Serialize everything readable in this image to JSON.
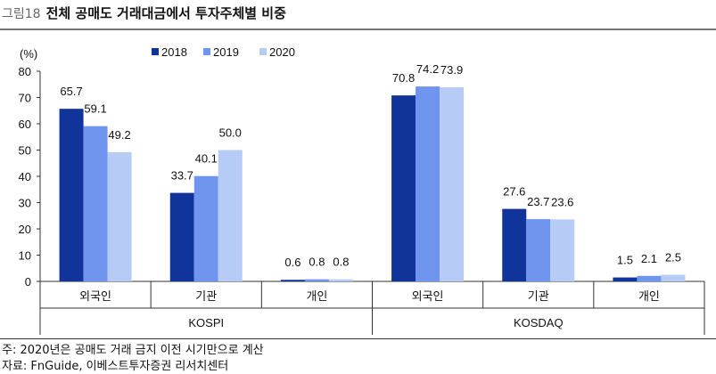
{
  "header": {
    "figure_label": "그림18",
    "title": "전체 공매도 거래대금에서 투자주체별 비중"
  },
  "chart_data": {
    "type": "bar",
    "title": "전체 공매도 거래대금에서 투자주체별 비중",
    "unit_label": "(%)",
    "ylim": [
      0,
      80
    ],
    "yticks": [
      0,
      10,
      20,
      30,
      40,
      50,
      60,
      70,
      80
    ],
    "legend_position": "top-center",
    "grid": false,
    "groups": [
      {
        "name": "KOSPI",
        "categories": [
          "외국인",
          "기관",
          "개인"
        ]
      },
      {
        "name": "KOSDAQ",
        "categories": [
          "외국인",
          "기관",
          "개인"
        ]
      }
    ],
    "series": [
      {
        "name": "2018",
        "color": "#10349a",
        "values": [
          65.7,
          33.7,
          0.6,
          70.8,
          27.6,
          1.5
        ],
        "labels": [
          "65.7",
          "33.7",
          "0.6",
          "70.8",
          "27.6",
          "1.5"
        ]
      },
      {
        "name": "2019",
        "color": "#6f95ee",
        "values": [
          59.1,
          40.1,
          0.8,
          74.2,
          23.7,
          2.1
        ],
        "labels": [
          "59.1",
          "40.1",
          "0.8",
          "74.2",
          "23.7",
          "2.1"
        ]
      },
      {
        "name": "2020",
        "color": "#b7cbf7",
        "values": [
          49.2,
          50.0,
          0.8,
          73.9,
          23.6,
          2.5
        ],
        "labels": [
          "49.2",
          "50.0",
          "0.8",
          "73.9",
          "23.6",
          "2.5"
        ]
      }
    ]
  },
  "notes": {
    "note": "주: 2020년은 공매도 거래 금지 이전 시기만으로 계산",
    "source": "자료: FnGuide, 이베스트투자증권 리서치센터"
  }
}
